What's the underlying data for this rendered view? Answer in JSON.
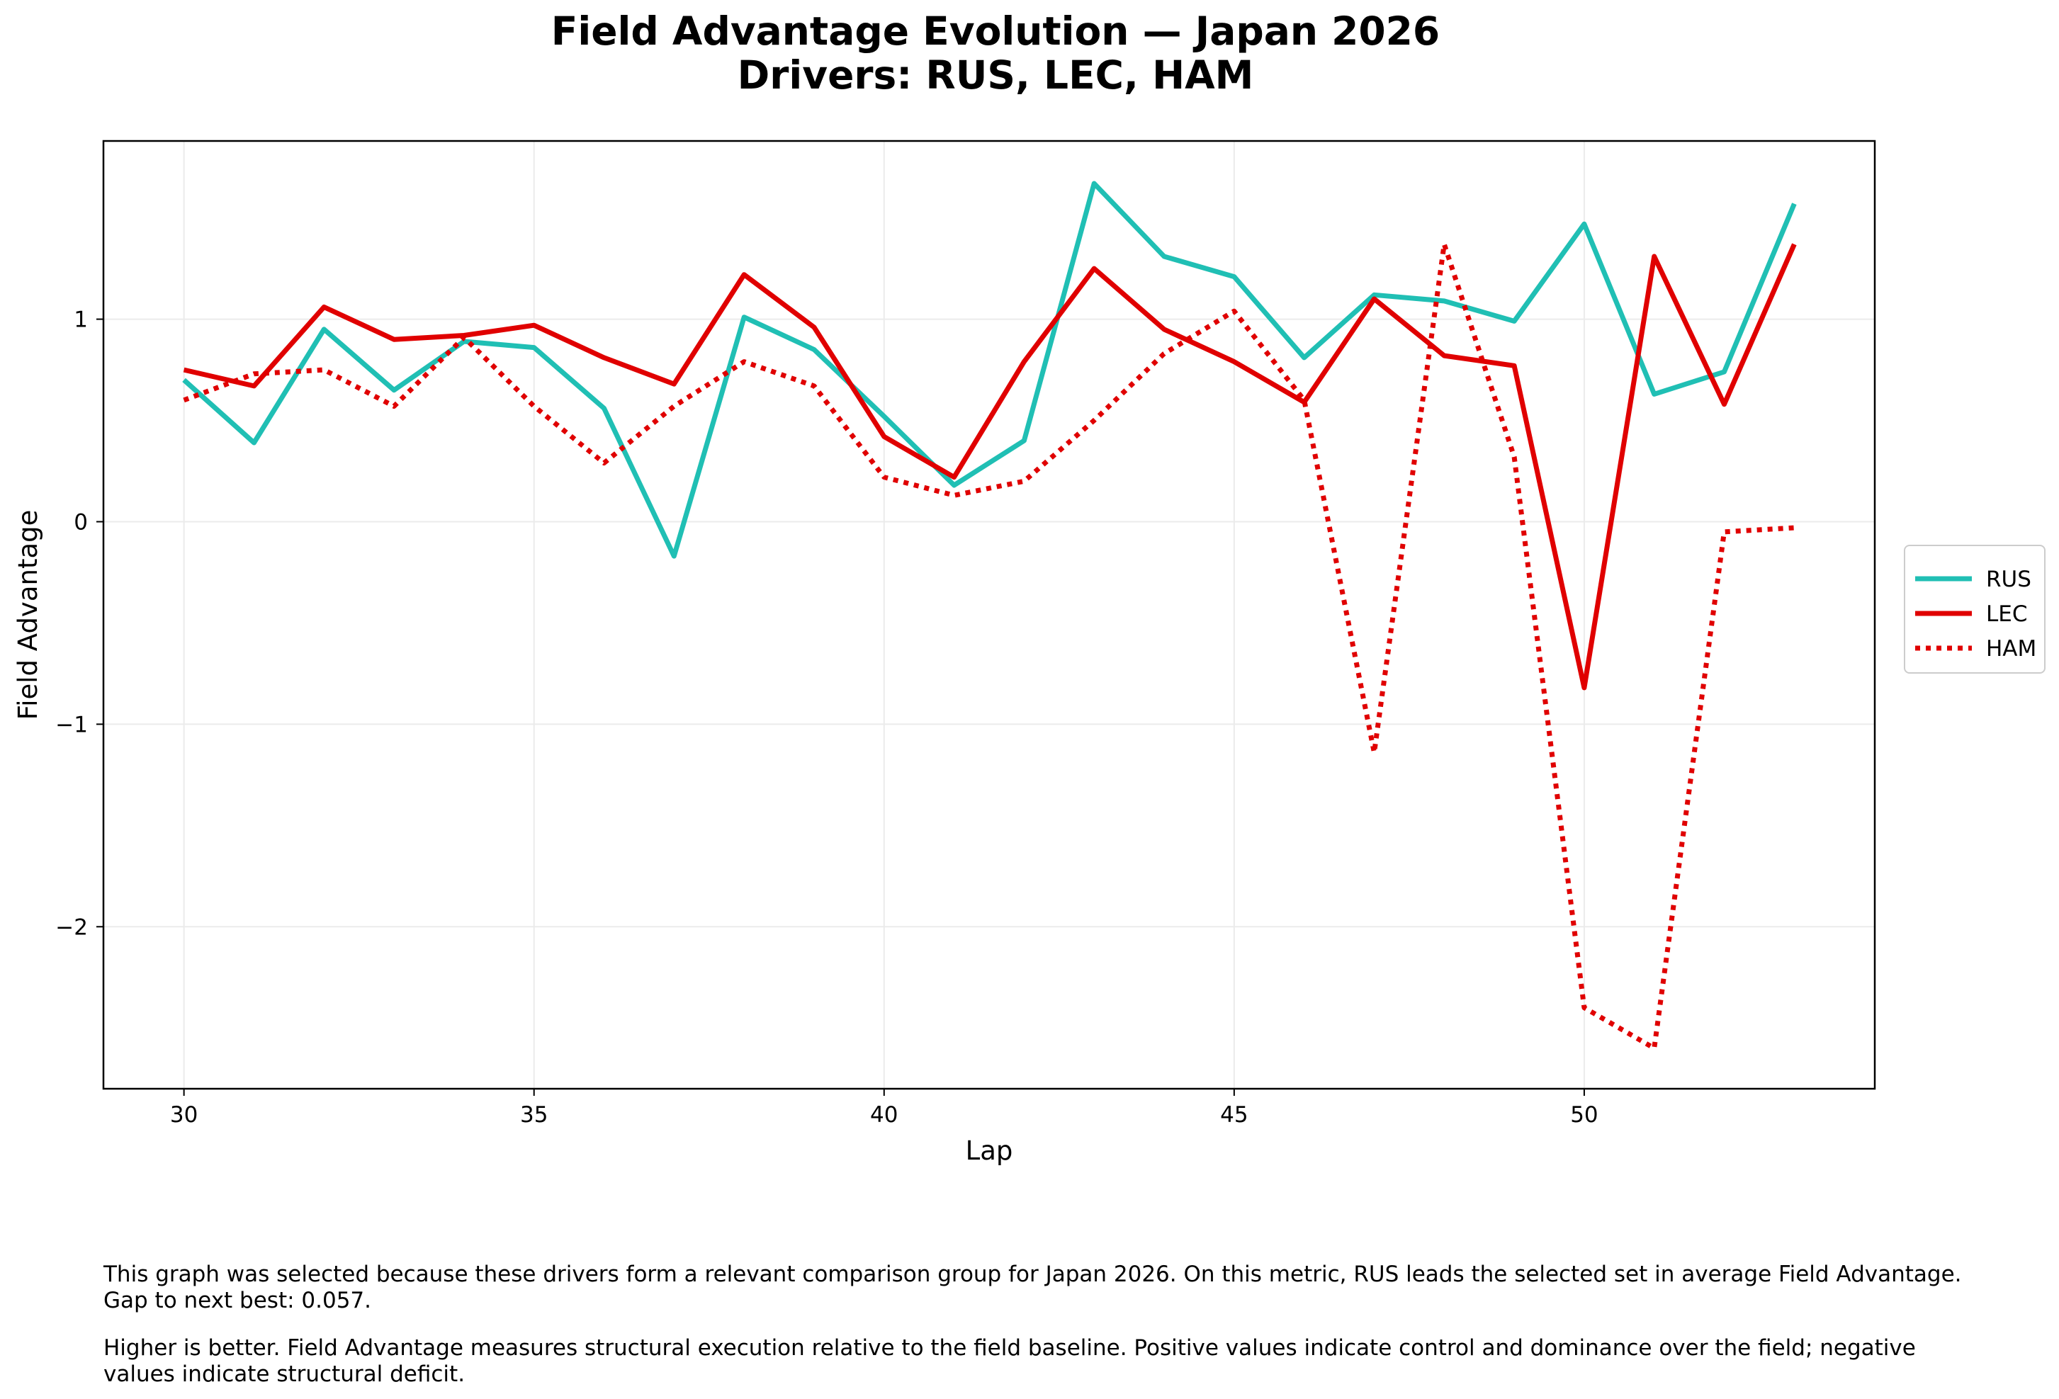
{
  "title": {
    "line1": "Field Advantage Evolution — Japan 2026",
    "line2": "Drivers: RUS, LEC, HAM"
  },
  "notes": [
    "This graph was selected because these drivers form a relevant comparison group for Japan 2026. On this metric, RUS leads the selected set in average Field Advantage. Gap to next best: 0.057.",
    "Higher is better. Field Advantage measures structural execution relative to the field baseline. Positive values indicate control and dominance over the field; negative values indicate structural deficit."
  ],
  "chart_data": {
    "type": "line",
    "title": "Field Advantage Evolution — Japan 2026\nDrivers: RUS, LEC, HAM",
    "xlabel": "Lap",
    "ylabel": "Field Advantage",
    "xlim": [
      28.85,
      54.15
    ],
    "ylim": [
      -2.8,
      1.88
    ],
    "xticks": [
      30,
      35,
      40,
      45,
      50
    ],
    "yticks": [
      1,
      0,
      -1,
      -2
    ],
    "ytick_labels": [
      "1",
      "0",
      "−1",
      "−2"
    ],
    "grid": true,
    "legend": "center-right (outside)",
    "x": [
      30,
      31,
      32,
      33,
      34,
      35,
      36,
      37,
      38,
      39,
      40,
      41,
      42,
      43,
      44,
      45,
      46,
      47,
      48,
      49,
      50,
      51,
      52,
      53
    ],
    "series": [
      {
        "name": "RUS",
        "color": "#20bfb4",
        "style": "solid",
        "values": [
          0.7,
          0.39,
          0.95,
          0.65,
          0.89,
          0.86,
          0.56,
          -0.17,
          1.01,
          0.85,
          0.52,
          0.18,
          0.4,
          1.67,
          1.31,
          1.21,
          0.81,
          1.12,
          1.09,
          0.99,
          1.47,
          0.63,
          0.74,
          1.57
        ]
      },
      {
        "name": "LEC",
        "color": "#e00000",
        "style": "solid",
        "values": [
          0.75,
          0.67,
          1.06,
          0.9,
          0.92,
          0.97,
          0.81,
          0.68,
          1.22,
          0.96,
          0.42,
          0.22,
          0.79,
          1.25,
          0.95,
          0.79,
          0.59,
          1.1,
          0.82,
          0.77,
          -0.82,
          1.31,
          0.58,
          1.37
        ]
      },
      {
        "name": "HAM",
        "color": "#e00000",
        "style": "dotted",
        "values": [
          0.6,
          0.73,
          0.75,
          0.57,
          0.91,
          0.57,
          0.29,
          0.57,
          0.79,
          0.67,
          0.22,
          0.13,
          0.2,
          0.5,
          0.83,
          1.04,
          0.6,
          -1.14,
          1.37,
          0.32,
          -2.4,
          -2.6,
          -0.05,
          -0.03
        ]
      }
    ]
  }
}
